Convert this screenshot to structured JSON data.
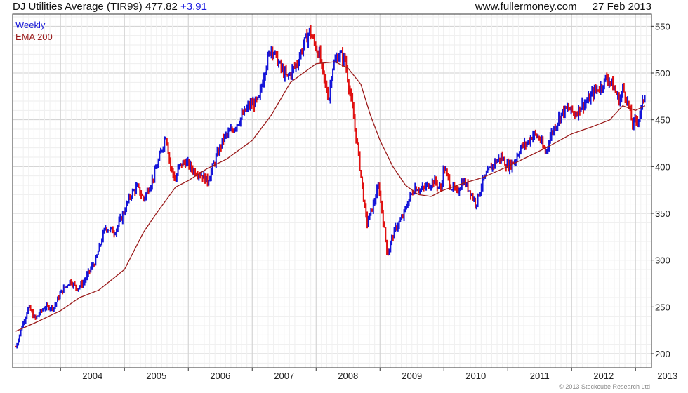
{
  "header": {
    "title": "DJ Utilities Average (TIR99)",
    "last": "477.82",
    "change": "+3.91",
    "website": "www.fullermoney.com",
    "date": "27 Feb 2013"
  },
  "copyright": "© 2013 Stockcube Research Ltd",
  "colors": {
    "up": "#1515d8",
    "down": "#e01010",
    "ema": "#9b1c1c",
    "grid": "#dcdcdc"
  },
  "chart_data": {
    "type": "line",
    "x_ticks": [
      "2004",
      "2005",
      "2006",
      "2007",
      "2008",
      "2009",
      "2010",
      "2011",
      "2012",
      "2013"
    ],
    "y_ticks": [
      200,
      250,
      300,
      350,
      400,
      450,
      500,
      550
    ],
    "ylim": [
      185,
      563
    ],
    "grid": true,
    "legend_position": "top-left",
    "series": [
      {
        "name": "Weekly",
        "x": [
          2003.3,
          2003.4,
          2003.5,
          2003.6,
          2003.75,
          2003.9,
          2004.0,
          2004.15,
          2004.25,
          2004.35,
          2004.45,
          2004.55,
          2004.7,
          2004.85,
          2004.95,
          2005.1,
          2005.2,
          2005.3,
          2005.45,
          2005.55,
          2005.65,
          2005.72,
          2005.8,
          2005.85,
          2005.95,
          2006.1,
          2006.2,
          2006.3,
          2006.45,
          2006.55,
          2006.7,
          2006.85,
          2006.95,
          2007.1,
          2007.2,
          2007.3,
          2007.35,
          2007.45,
          2007.55,
          2007.7,
          2007.8,
          2007.9,
          2007.95,
          2008.05,
          2008.1,
          2008.2,
          2008.25,
          2008.35,
          2008.45,
          2008.55,
          2008.65,
          2008.72,
          2008.77,
          2008.8,
          2008.9,
          2008.98,
          2009.05,
          2009.12,
          2009.17,
          2009.25,
          2009.35,
          2009.45,
          2009.55,
          2009.65,
          2009.75,
          2009.85,
          2009.95,
          2010.0,
          2010.1,
          2010.2,
          2010.3,
          2010.4,
          2010.5,
          2010.6,
          2010.7,
          2010.8,
          2010.9,
          2011.0,
          2011.1,
          2011.2,
          2011.3,
          2011.4,
          2011.5,
          2011.55,
          2011.6,
          2011.65,
          2011.75,
          2011.85,
          2011.95,
          2012.05,
          2012.15,
          2012.25,
          2012.35,
          2012.45,
          2012.55,
          2012.6,
          2012.7,
          2012.75,
          2012.8,
          2012.85,
          2012.9,
          2012.95,
          2013.05,
          2013.15
        ],
        "y": [
          207,
          230,
          250,
          237,
          250,
          250,
          265,
          278,
          270,
          275,
          288,
          300,
          335,
          330,
          345,
          370,
          378,
          365,
          388,
          410,
          435,
          400,
          385,
          400,
          405,
          395,
          392,
          384,
          412,
          430,
          440,
          455,
          465,
          470,
          505,
          528,
          520,
          505,
          495,
          510,
          530,
          545,
          535,
          520,
          500,
          472,
          505,
          520,
          515,
          470,
          420,
          380,
          350,
          340,
          360,
          380,
          342,
          305,
          320,
          335,
          345,
          365,
          378,
          375,
          380,
          385,
          375,
          400,
          380,
          372,
          385,
          375,
          360,
          382,
          395,
          405,
          410,
          400,
          405,
          420,
          425,
          435,
          430,
          420,
          415,
          430,
          445,
          458,
          462,
          456,
          465,
          470,
          480,
          485,
          495,
          492,
          478,
          470,
          483,
          475,
          462,
          445,
          452,
          478
        ]
      },
      {
        "name": "EMA 200",
        "x": [
          2003.3,
          2003.6,
          2004.0,
          2004.3,
          2004.6,
          2005.0,
          2005.3,
          2005.5,
          2005.8,
          2006.0,
          2006.3,
          2006.6,
          2007.0,
          2007.3,
          2007.6,
          2008.0,
          2008.3,
          2008.5,
          2008.7,
          2008.85,
          2009.0,
          2009.2,
          2009.4,
          2009.6,
          2009.8,
          2010.0,
          2010.3,
          2010.6,
          2011.0,
          2011.3,
          2011.6,
          2012.0,
          2012.3,
          2012.6,
          2012.8,
          2013.0,
          2013.15
        ],
        "y": [
          224,
          233,
          246,
          260,
          268,
          290,
          330,
          350,
          378,
          385,
          398,
          408,
          428,
          455,
          490,
          510,
          512,
          505,
          488,
          455,
          428,
          400,
          380,
          370,
          368,
          375,
          382,
          388,
          400,
          410,
          420,
          435,
          442,
          450,
          465,
          460,
          465
        ]
      }
    ]
  }
}
